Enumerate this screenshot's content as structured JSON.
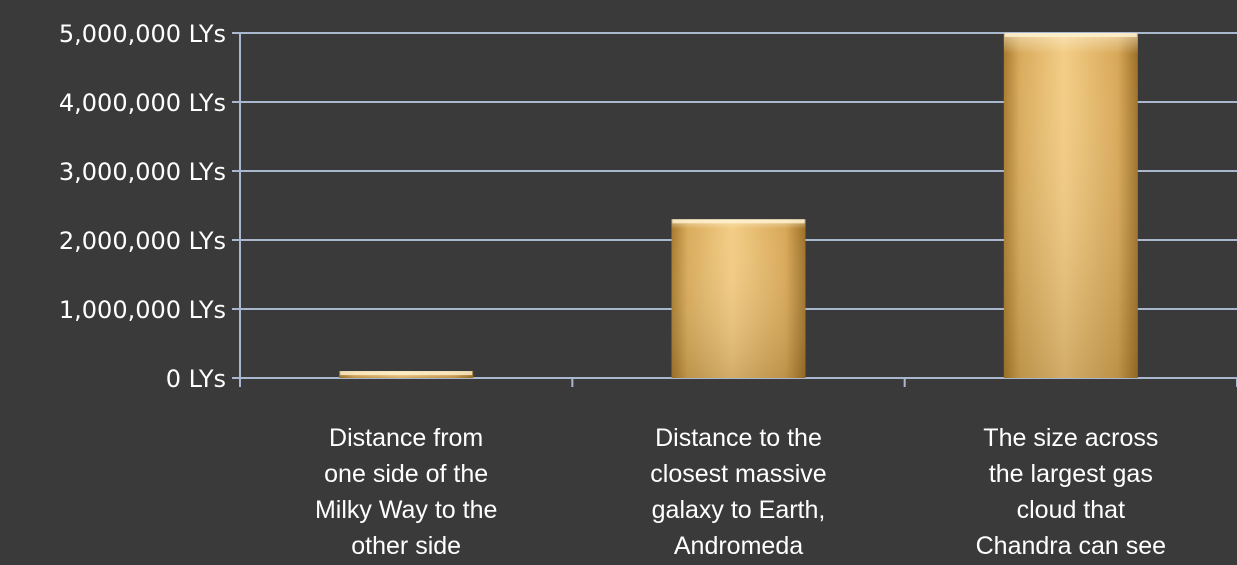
{
  "chart_data": {
    "type": "bar",
    "categories": [
      [
        "Distance from",
        "one side of the",
        "Milky Way to the",
        "other side"
      ],
      [
        "Distance to the",
        "closest massive",
        "galaxy to Earth,",
        "Andromeda"
      ],
      [
        "The size across",
        "the largest gas",
        "cloud that",
        "Chandra can see"
      ]
    ],
    "values": [
      100000,
      2300000,
      5000000
    ],
    "yticks": [
      0,
      1000000,
      2000000,
      3000000,
      4000000,
      5000000
    ],
    "ytick_labels": [
      "0 LYs",
      "1,000,000 LYs",
      "2,000,000 LYs",
      "3,000,000 LYs",
      "4,000,000 LYs",
      "5,000,000 LYs"
    ],
    "ylim": [
      0,
      5000000
    ],
    "grid": true,
    "legend": "none",
    "colors": {
      "background": "#3a3a3a",
      "bar_light": "#f6cf86",
      "bar_dark": "#b98a38",
      "gridline": "#a9b8cf",
      "text": "#ffffff"
    }
  }
}
